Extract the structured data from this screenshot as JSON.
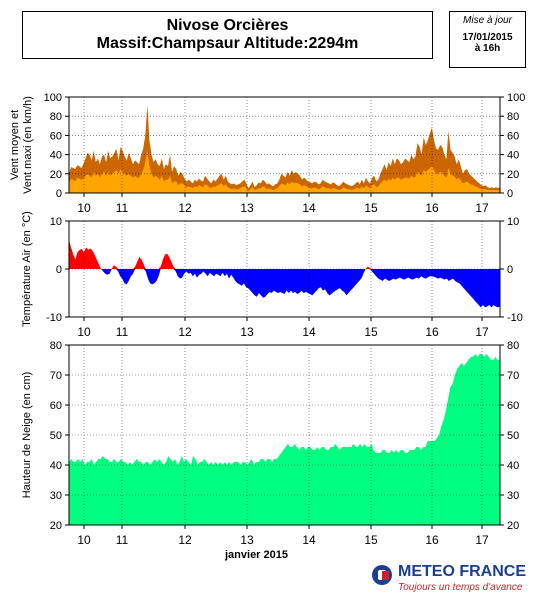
{
  "header": {
    "title_line1": "Nivose Orcières",
    "title_line2": "Massif:Champsaur Altitude:2294m",
    "update_label": "Mise à jour",
    "update_date": "17/01/2015",
    "update_time": "à 16h"
  },
  "logo": {
    "name": "METEO FRANCE",
    "tagline": "Toujours un temps d'avance"
  },
  "colors": {
    "wind_max": "#cc6600",
    "wind_mean": "#ffa500",
    "temp_pos": "#ff0000",
    "temp_neg": "#0000ff",
    "snow": "#00ff80"
  },
  "chart_data": [
    {
      "type": "area",
      "ylabel": "Vent moyen et Vent maxi (en km/h)",
      "ylim": [
        0,
        100
      ],
      "yticks": [
        0,
        20,
        40,
        60,
        80,
        100
      ],
      "x_ticks": [
        "10",
        "11",
        "12",
        "13",
        "14",
        "15",
        "16",
        "17"
      ],
      "grid": true,
      "series": [
        {
          "name": "Vent maxi",
          "color": "#cc6600",
          "values": [
            20,
            27,
            26,
            25,
            29,
            28,
            26,
            30,
            36,
            42,
            40,
            34,
            44,
            32,
            36,
            30,
            38,
            40,
            32,
            44,
            36,
            38,
            42,
            46,
            34,
            48,
            44,
            38,
            34,
            42,
            36,
            30,
            34,
            32,
            30,
            40,
            46,
            60,
            92,
            55,
            40,
            32,
            35,
            30,
            28,
            36,
            25,
            30,
            28,
            40,
            22,
            28,
            25,
            18,
            22,
            20,
            15,
            12,
            14,
            12,
            10,
            14,
            12,
            15,
            13,
            12,
            18,
            15,
            12,
            10,
            14,
            12,
            15,
            18,
            20,
            14,
            18,
            12,
            10,
            9,
            10,
            8,
            9,
            10,
            12,
            14,
            10,
            5,
            8,
            12,
            6,
            8,
            11,
            10,
            14,
            12,
            9,
            10,
            8,
            7,
            9,
            10,
            14,
            20,
            18,
            16,
            22,
            18,
            24,
            20,
            22,
            20,
            18,
            14,
            16,
            14,
            12,
            11,
            10,
            12,
            11,
            9,
            10,
            14,
            12,
            11,
            10,
            9,
            11,
            10,
            8,
            7,
            9,
            12,
            10,
            9,
            8,
            7,
            8,
            10,
            12,
            9,
            14,
            10,
            16,
            12,
            10,
            16,
            18,
            12,
            14,
            20,
            25,
            30,
            24,
            32,
            28,
            36,
            30,
            36,
            34,
            30,
            32,
            36,
            34,
            32,
            40,
            35,
            38,
            52,
            48,
            40,
            58,
            50,
            55,
            62,
            68,
            55,
            46,
            45,
            50,
            48,
            40,
            35,
            65,
            45,
            42,
            38,
            30,
            35,
            28,
            20,
            24,
            25,
            20,
            18,
            16,
            14,
            12,
            10,
            8,
            7,
            8,
            6,
            5,
            6,
            5,
            6,
            5,
            6
          ]
        },
        {
          "name": "Vent moyen",
          "color": "#ffa500",
          "values": [
            10,
            15,
            14,
            12,
            16,
            15,
            14,
            15,
            18,
            20,
            18,
            16,
            22,
            18,
            20,
            16,
            20,
            22,
            18,
            22,
            18,
            20,
            22,
            24,
            20,
            25,
            22,
            20,
            18,
            20,
            18,
            16,
            18,
            16,
            16,
            20,
            24,
            32,
            44,
            28,
            20,
            16,
            18,
            16,
            14,
            18,
            12,
            14,
            14,
            18,
            10,
            12,
            12,
            8,
            10,
            10,
            8,
            6,
            7,
            6,
            5,
            7,
            6,
            8,
            7,
            6,
            9,
            8,
            6,
            5,
            7,
            6,
            8,
            9,
            10,
            7,
            9,
            6,
            5,
            4,
            5,
            4,
            4,
            5,
            6,
            7,
            5,
            2,
            4,
            6,
            3,
            4,
            5,
            5,
            7,
            6,
            4,
            5,
            4,
            3,
            4,
            5,
            7,
            10,
            9,
            8,
            11,
            9,
            12,
            10,
            11,
            10,
            9,
            7,
            8,
            7,
            6,
            5,
            5,
            6,
            5,
            4,
            5,
            7,
            6,
            5,
            5,
            4,
            5,
            5,
            4,
            3,
            4,
            6,
            5,
            4,
            4,
            3,
            4,
            5,
            6,
            4,
            7,
            5,
            8,
            6,
            5,
            8,
            9,
            6,
            7,
            10,
            12,
            14,
            12,
            15,
            13,
            16,
            14,
            16,
            16,
            14,
            15,
            16,
            16,
            15,
            18,
            16,
            17,
            22,
            20,
            18,
            24,
            22,
            24,
            26,
            28,
            24,
            20,
            20,
            22,
            21,
            18,
            16,
            26,
            20,
            18,
            17,
            14,
            16,
            13,
            10,
            11,
            12,
            10,
            9,
            8,
            7,
            6,
            5,
            4,
            4,
            4,
            3,
            3,
            3,
            3,
            3,
            3,
            3
          ]
        }
      ]
    },
    {
      "type": "area",
      "ylabel": "Température Air (en °C)",
      "ylim": [
        -10,
        10
      ],
      "yticks": [
        -10,
        0,
        10
      ],
      "x_ticks": [
        "10",
        "11",
        "12",
        "13",
        "14",
        "15",
        "16",
        "17"
      ],
      "grid": true,
      "series": [
        {
          "name": "Température Air",
          "color_positive": "#ff0000",
          "color_negative": "#0000ff",
          "values": [
            6.0,
            4.5,
            3.0,
            2.0,
            3.5,
            4.0,
            4.2,
            3.5,
            4.5,
            4.0,
            4.3,
            3.8,
            3.0,
            2.0,
            1.0,
            0.0,
            -0.5,
            -1.0,
            -1.2,
            -1.0,
            0.0,
            0.8,
            0.5,
            -0.5,
            -1.5,
            -2.0,
            -3.0,
            -3.2,
            -2.5,
            -1.5,
            -1.0,
            0.5,
            1.5,
            2.5,
            2.0,
            1.0,
            -0.5,
            -2.0,
            -3.0,
            -3.2,
            -3.0,
            -2.5,
            -1.5,
            0.5,
            2.0,
            3.0,
            3.2,
            2.5,
            1.5,
            0.5,
            -0.5,
            -1.5,
            -2.0,
            -1.8,
            -1.0,
            -0.5,
            -1.0,
            -0.8,
            -1.5,
            -1.0,
            -1.8,
            -1.2,
            -1.0,
            -0.5,
            -1.0,
            -1.5,
            -0.8,
            -1.2,
            -1.5,
            -1.0,
            -1.2,
            -1.5,
            -0.8,
            -1.5,
            -1.0,
            -2.0,
            -1.2,
            -1.8,
            -2.5,
            -3.0,
            -3.2,
            -3.5,
            -3.0,
            -3.8,
            -4.0,
            -4.5,
            -5.0,
            -5.5,
            -5.8,
            -5.0,
            -5.5,
            -6.0,
            -5.8,
            -5.2,
            -4.8,
            -5.0,
            -4.5,
            -4.8,
            -5.0,
            -4.8,
            -5.0,
            -5.2,
            -4.5,
            -5.0,
            -4.5,
            -5.0,
            -4.8,
            -5.2,
            -5.0,
            -4.5,
            -5.0,
            -4.8,
            -5.0,
            -5.2,
            -5.5,
            -5.0,
            -4.5,
            -4.0,
            -3.8,
            -4.5,
            -4.2,
            -5.0,
            -5.5,
            -5.2,
            -4.8,
            -4.5,
            -4.2,
            -4.0,
            -4.5,
            -4.8,
            -5.5,
            -5.0,
            -4.5,
            -4.0,
            -3.5,
            -3.0,
            -2.5,
            -2.0,
            -1.0,
            0.0,
            0.5,
            0.2,
            -0.5,
            -1.0,
            -1.5,
            -2.0,
            -2.2,
            -2.5,
            -2.0,
            -2.2,
            -2.5,
            -2.3,
            -2.0,
            -2.2,
            -2.0,
            -1.8,
            -2.0,
            -2.2,
            -2.0,
            -1.8,
            -2.0,
            -2.2,
            -2.0,
            -1.8,
            -2.0,
            -1.5,
            -1.8,
            -2.0,
            -1.8,
            -1.5,
            -1.5,
            -1.6,
            -1.8,
            -2.0,
            -1.8,
            -2.0,
            -2.2,
            -2.0,
            -2.5,
            -2.2,
            -2.0,
            -2.5,
            -2.8,
            -3.0,
            -3.5,
            -4.0,
            -4.5,
            -5.0,
            -5.5,
            -6.0,
            -6.5,
            -7.0,
            -7.5,
            -8.0,
            -7.5,
            -8.0,
            -7.8,
            -7.5,
            -8.0,
            -7.5,
            -7.8,
            -8.0,
            -7.8
          ]
        }
      ]
    },
    {
      "type": "area",
      "ylabel": "Hauteur de Neige (en cm)",
      "xlabel": "janvier 2015",
      "ylim": [
        20,
        80
      ],
      "yticks": [
        20,
        30,
        40,
        50,
        60,
        70,
        80
      ],
      "x_ticks": [
        "10",
        "11",
        "12",
        "13",
        "14",
        "15",
        "16",
        "17"
      ],
      "grid": true,
      "series": [
        {
          "name": "Hauteur de Neige",
          "color": "#00ff80",
          "values": [
            41,
            42,
            41,
            41,
            42,
            41,
            42,
            40,
            41,
            41,
            42,
            40,
            41,
            42,
            42,
            43,
            42,
            42,
            41,
            41,
            42,
            41,
            41,
            42,
            41,
            41,
            40,
            41,
            40,
            41,
            42,
            41,
            41,
            40,
            41,
            41,
            40,
            41,
            42,
            41,
            42,
            41,
            40,
            41,
            43,
            42,
            41,
            42,
            40,
            41,
            43,
            41,
            42,
            41,
            40,
            43,
            42,
            40,
            41,
            41,
            42,
            41,
            40,
            41,
            40,
            41,
            40,
            41,
            40,
            41,
            40,
            41,
            40,
            41,
            41,
            41,
            40,
            41,
            41,
            40,
            41,
            42,
            40,
            41,
            41,
            42,
            42,
            41,
            42,
            42,
            41,
            42,
            42,
            43,
            44,
            45,
            46,
            47,
            46,
            46,
            47,
            46,
            45,
            46,
            46,
            45,
            46,
            46,
            45,
            45,
            46,
            45,
            46,
            46,
            45,
            45,
            46,
            46,
            47,
            46,
            45,
            46,
            46,
            46,
            46,
            46,
            47,
            46,
            46,
            47,
            46,
            47,
            46,
            46,
            47,
            45,
            44,
            44,
            44,
            45,
            45,
            44,
            44,
            45,
            44,
            45,
            44,
            45,
            45,
            44,
            44,
            45,
            45,
            45,
            46,
            46,
            45,
            46,
            46,
            48,
            48,
            48,
            48,
            49,
            50,
            53,
            55,
            58,
            62,
            66,
            67,
            70,
            72,
            73,
            74,
            73,
            74,
            75,
            76,
            76,
            77,
            76,
            77,
            77,
            76,
            77,
            76,
            75,
            75,
            76,
            75,
            75
          ]
        }
      ]
    }
  ]
}
